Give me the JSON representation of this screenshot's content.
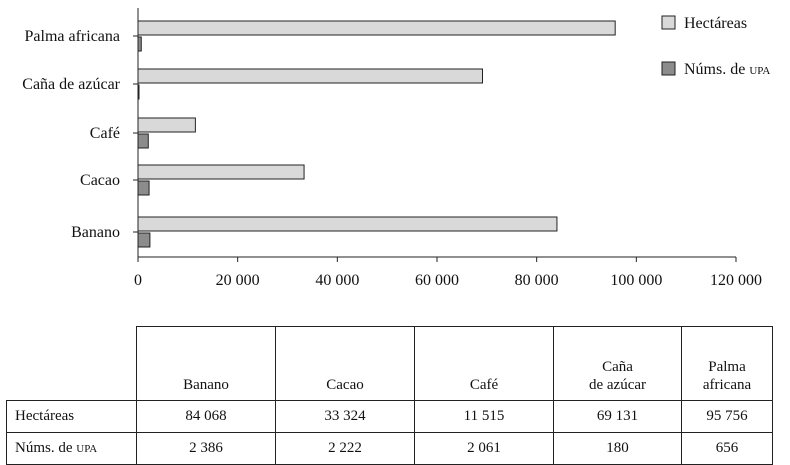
{
  "chart_data": {
    "type": "bar",
    "orientation": "horizontal",
    "categories": [
      "Banano",
      "Cacao",
      "Café",
      "Caña de azúcar",
      "Palma africana"
    ],
    "series": [
      {
        "name": "Hectáreas",
        "values": [
          84068,
          33324,
          11515,
          69131,
          95756
        ],
        "color": "#d9d9d9"
      },
      {
        "name": "Núms. de upa",
        "values": [
          2386,
          2222,
          2061,
          180,
          656
        ],
        "color": "#8c8c8c"
      }
    ],
    "xlim": [
      0,
      120000
    ],
    "x_ticks": [
      0,
      20000,
      40000,
      60000,
      80000,
      100000,
      120000
    ],
    "x_tick_labels": [
      "0",
      "20 000",
      "40 000",
      "60 000",
      "80 000",
      "100 000",
      "120 000"
    ],
    "legend_position": "top-right",
    "grid": false
  },
  "table": {
    "headers": [
      [
        "Banano"
      ],
      [
        "Cacao"
      ],
      [
        "Café"
      ],
      [
        "Caña",
        "de azúcar"
      ],
      [
        "Palma",
        "africana"
      ]
    ],
    "rows": [
      {
        "label": "Hectáreas",
        "values": [
          "84 068",
          "33 324",
          "11 515",
          "69 131",
          "95 756"
        ]
      },
      {
        "label": "Núms. de",
        "label_sc": "upa",
        "values": [
          "2 386",
          "2 222",
          "2 061",
          "180",
          "656"
        ]
      }
    ]
  },
  "legend": [
    {
      "label": "Hectáreas"
    },
    {
      "label": "Núms. de",
      "label_sc": "upa"
    }
  ]
}
